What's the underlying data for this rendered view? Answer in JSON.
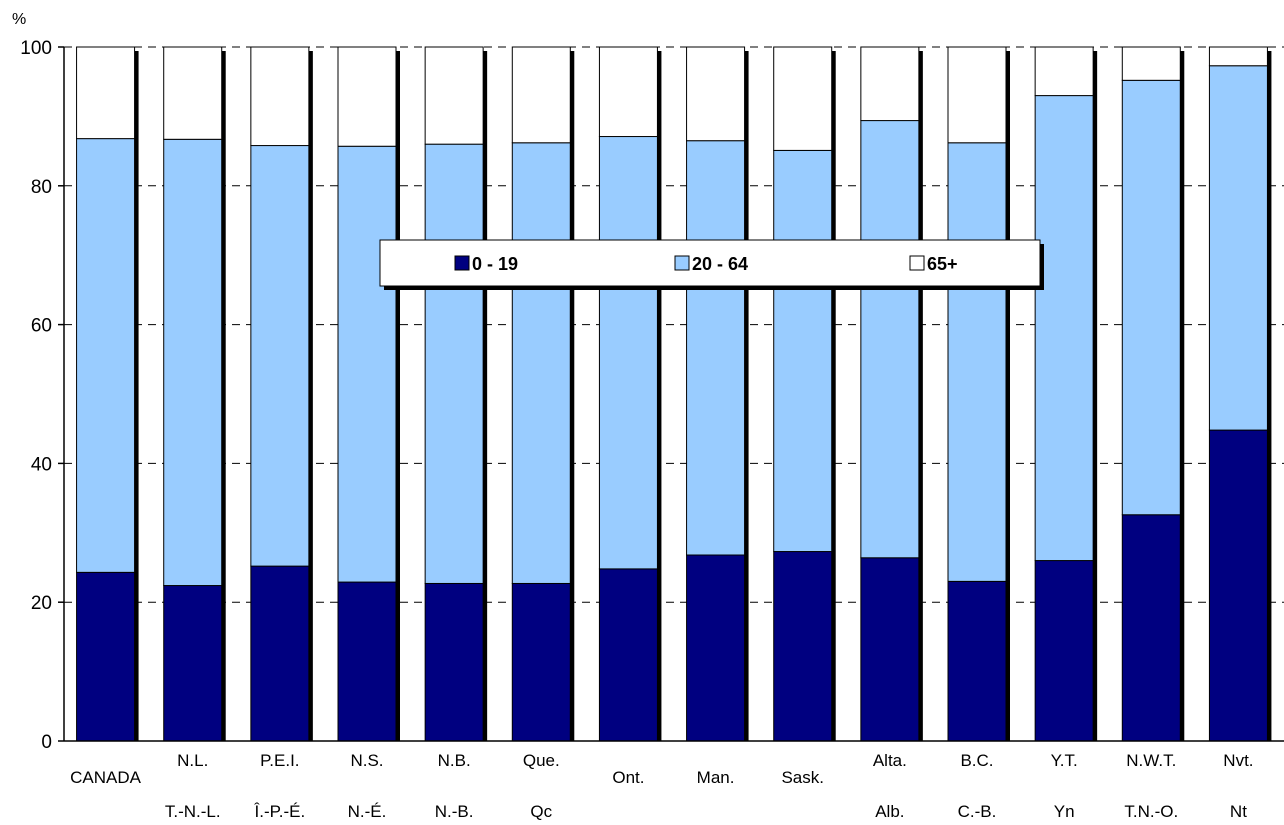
{
  "chart_data": {
    "type": "bar",
    "stacked": true,
    "percent_stacked": true,
    "ylabel": "%",
    "ylim": [
      0,
      100
    ],
    "yticks": [
      0,
      20,
      40,
      60,
      80,
      100
    ],
    "grid": "horizontal dashed",
    "legend_placement": "center",
    "categories": [
      {
        "en": "CANADA",
        "fr": ""
      },
      {
        "en": "N.L.",
        "fr": "T.-N.-L."
      },
      {
        "en": "P.E.I.",
        "fr": "Î.-P.-É."
      },
      {
        "en": "N.S.",
        "fr": "N.-É."
      },
      {
        "en": "N.B.",
        "fr": "N.-B."
      },
      {
        "en": "Que.",
        "fr": "Qc"
      },
      {
        "en": "Ont.",
        "fr": ""
      },
      {
        "en": "Man.",
        "fr": ""
      },
      {
        "en": "Sask.",
        "fr": ""
      },
      {
        "en": "Alta.",
        "fr": "Alb."
      },
      {
        "en": "B.C.",
        "fr": "C.-B."
      },
      {
        "en": "Y.T.",
        "fr": "Yn"
      },
      {
        "en": "N.W.T.",
        "fr": "T.N.-O."
      },
      {
        "en": "Nvt.",
        "fr": "Nt"
      }
    ],
    "series": [
      {
        "name": "0 - 19",
        "color": "#000080",
        "values": [
          24.3,
          22.4,
          25.2,
          22.9,
          22.7,
          22.7,
          24.8,
          26.8,
          27.3,
          26.4,
          23.0,
          26.0,
          32.6,
          44.8
        ]
      },
      {
        "name": "20 - 64",
        "color": "#99ccff",
        "values": [
          62.5,
          64.3,
          60.6,
          62.8,
          63.3,
          63.5,
          62.3,
          59.7,
          57.8,
          63.0,
          63.2,
          67.0,
          62.6,
          52.5
        ]
      },
      {
        "name": "65+",
        "color": "#ffffff",
        "values": [
          13.2,
          13.3,
          14.2,
          14.3,
          14.0,
          13.8,
          12.9,
          13.5,
          14.9,
          10.6,
          13.8,
          7.0,
          4.8,
          2.7
        ]
      }
    ]
  }
}
